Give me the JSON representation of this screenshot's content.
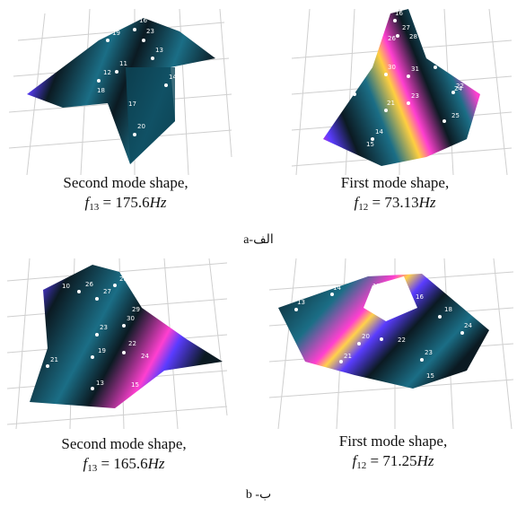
{
  "rows": [
    {
      "label": "a-الف",
      "panels": [
        {
          "caption": "Second mode shape,",
          "f_sub": "13",
          "f_value": "175.6",
          "unit": "Hz"
        },
        {
          "caption": "First mode shape,",
          "f_sub": "12",
          "f_value": "73.13",
          "unit": "Hz"
        }
      ]
    },
    {
      "label": "b -ب",
      "panels": [
        {
          "caption": "Second mode shape,",
          "f_sub": "13",
          "f_value": "165.6",
          "unit": "Hz"
        },
        {
          "caption": "First mode shape,",
          "f_sub": "12",
          "f_value": "71.25",
          "unit": "Hz"
        }
      ]
    }
  ],
  "node_numbers": {
    "a1": [
      "16",
      "23",
      "11",
      "12",
      "13",
      "14",
      "20",
      "19",
      "18",
      "17"
    ],
    "a2": [
      "16",
      "27",
      "28",
      "26",
      "30",
      "31",
      "32",
      "22",
      "23",
      "24",
      "21",
      "25",
      "14",
      "15"
    ],
    "b1": [
      "10",
      "26",
      "27",
      "28",
      "30",
      "29",
      "23",
      "22",
      "24",
      "21",
      "19",
      "13",
      "15"
    ],
    "b2": [
      "13",
      "14",
      "15",
      "16",
      "18",
      "24",
      "21",
      "20",
      "23",
      "15",
      "22"
    ]
  },
  "colors": {
    "surface_dark": "#0b1a22",
    "surface_teal": "#1b6e86",
    "hot": "#ff3fd0",
    "warm": "#ffd24a",
    "grid": "#c8c8c8"
  }
}
